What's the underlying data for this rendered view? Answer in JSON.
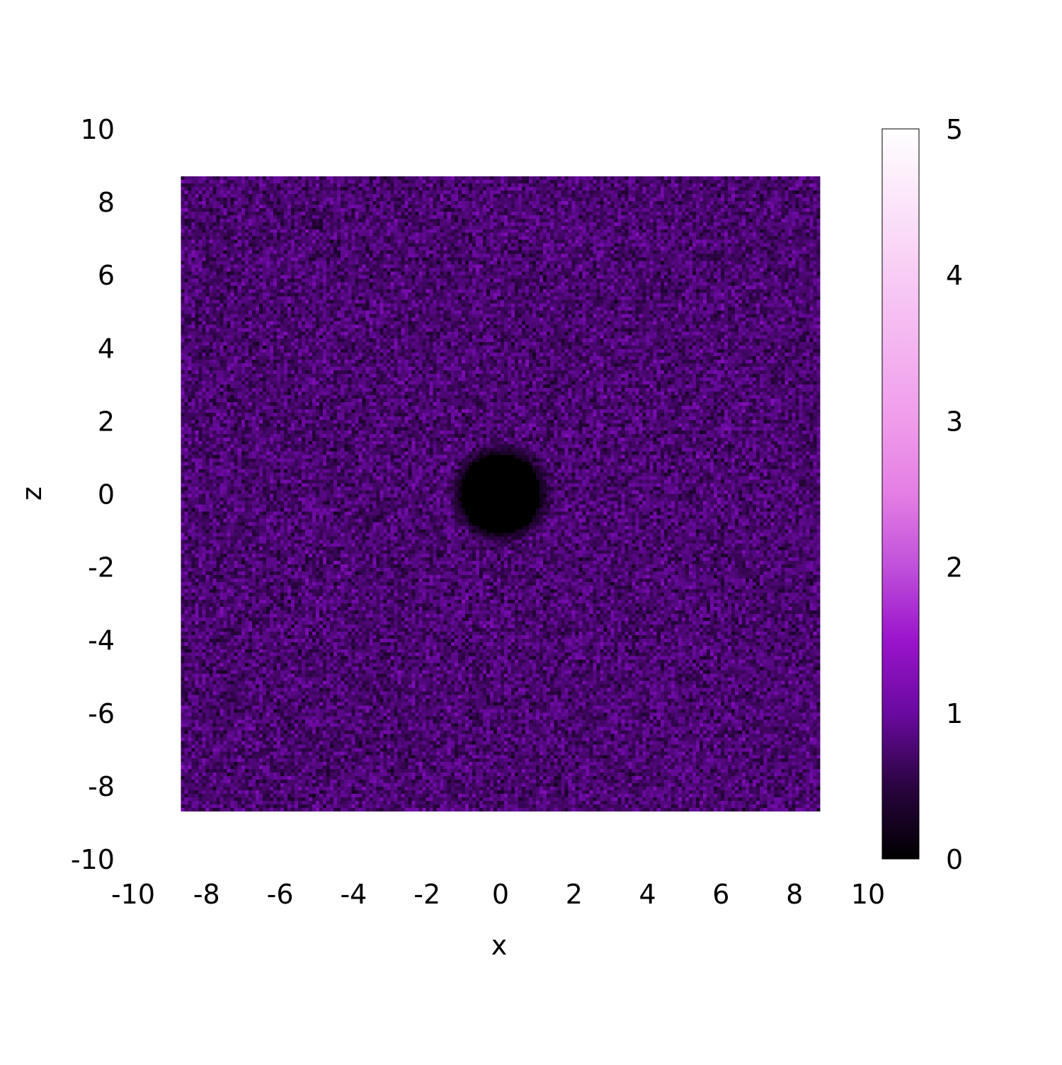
{
  "chart_data": {
    "type": "heatmap",
    "title": "",
    "xlabel": "x",
    "ylabel": "z",
    "xlim": [
      -10,
      10
    ],
    "ylim": [
      -10,
      10
    ],
    "x_ticks": [
      -10,
      -8,
      -6,
      -4,
      -2,
      0,
      2,
      4,
      6,
      8,
      10
    ],
    "y_ticks": [
      -10,
      -8,
      -6,
      -4,
      -2,
      0,
      2,
      4,
      6,
      8,
      10
    ],
    "x_tick_labels": [
      "-10",
      "-8",
      "-6",
      "-4",
      "-2",
      "0",
      "2",
      "4",
      "6",
      "8",
      "10"
    ],
    "y_tick_labels": [
      "-10",
      "-8",
      "-6",
      "-4",
      "-2",
      "0",
      "2",
      "4",
      "6",
      "8",
      "10"
    ],
    "data_extent": {
      "x": [
        -8.7,
        8.7
      ],
      "z": [
        -8.7,
        8.7
      ]
    },
    "background_value_mean": 0.75,
    "background_value_spread": 0.35,
    "hole": {
      "center_x": 0,
      "center_z": 0,
      "radius": 1.1,
      "value": 0
    },
    "colorbar": {
      "range": [
        0,
        5
      ],
      "ticks": [
        0,
        1,
        2,
        3,
        4,
        5
      ],
      "tick_labels": [
        "0",
        "1",
        "2",
        "3",
        "4",
        "5"
      ],
      "colormap": [
        {
          "value": 0.0,
          "color": "#000000"
        },
        {
          "value": 0.5,
          "color": "#2a0440"
        },
        {
          "value": 1.0,
          "color": "#6a0aa0"
        },
        {
          "value": 1.5,
          "color": "#9a14cc"
        },
        {
          "value": 2.0,
          "color": "#c050da"
        },
        {
          "value": 2.5,
          "color": "#e47ee4"
        },
        {
          "value": 3.0,
          "color": "#f09ceb"
        },
        {
          "value": 4.0,
          "color": "#f8ccf5"
        },
        {
          "value": 5.0,
          "color": "#ffffff"
        }
      ]
    },
    "grid": false,
    "legend": "none"
  }
}
